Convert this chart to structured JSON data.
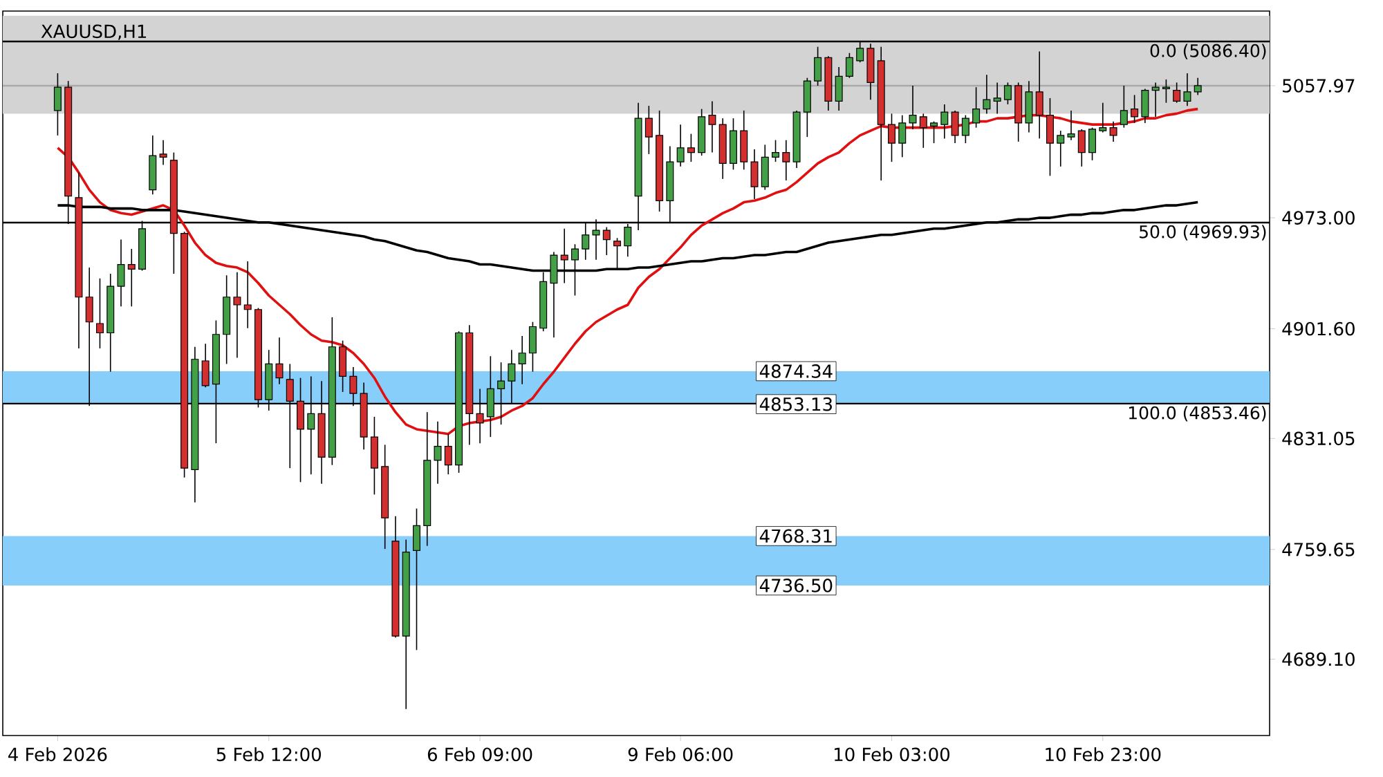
{
  "chart_data": {
    "type": "candlestick",
    "title": "XAUUSD,H1",
    "categories": [
      "4 Feb 2026",
      null,
      null,
      null,
      null,
      null,
      null,
      null,
      null,
      null,
      null,
      null,
      null,
      null,
      null,
      null,
      null,
      null,
      null,
      null,
      "5 Feb 12:00",
      null,
      null,
      null,
      null,
      null,
      null,
      null,
      null,
      null,
      null,
      null,
      null,
      null,
      null,
      null,
      null,
      null,
      null,
      null,
      "6 Feb 09:00",
      null,
      null,
      null,
      null,
      null,
      null,
      null,
      null,
      null,
      null,
      null,
      null,
      null,
      null,
      null,
      null,
      null,
      null,
      "9 Feb 06:00",
      null,
      null,
      null,
      null,
      null,
      null,
      null,
      null,
      null,
      null,
      null,
      null,
      null,
      null,
      null,
      null,
      null,
      null,
      null,
      "10 Feb 03:00",
      null,
      null,
      null,
      null,
      null,
      null,
      null,
      null,
      null,
      null,
      null,
      null,
      null,
      null,
      null,
      null,
      null,
      null,
      null,
      "10 Feb 23:00",
      null,
      null,
      null,
      null,
      null,
      null,
      null,
      null,
      null
    ],
    "ohlc": [
      [
        5042,
        5066,
        5026,
        5057
      ],
      [
        5057,
        5061,
        4969,
        4987
      ],
      [
        4986,
        5002,
        4889,
        4922
      ],
      [
        4922,
        4941,
        4852,
        4906
      ],
      [
        4905,
        4934,
        4889,
        4899
      ],
      [
        4899,
        4937,
        4874,
        4929
      ],
      [
        4929,
        4959,
        4916,
        4943
      ],
      [
        4943,
        4953,
        4916,
        4940
      ],
      [
        4940,
        4971,
        4939,
        4966
      ],
      [
        4991,
        5026,
        4988,
        5013
      ],
      [
        5014,
        5023,
        5007,
        5012
      ],
      [
        5010,
        5015,
        4937,
        4963
      ],
      [
        4963,
        4964,
        4806,
        4812
      ],
      [
        4811,
        4890,
        4790,
        4882
      ],
      [
        4881,
        4892,
        4864,
        4865
      ],
      [
        4866,
        4907,
        4828,
        4898
      ],
      [
        4898,
        4936,
        4879,
        4922
      ],
      [
        4922,
        4938,
        4883,
        4917
      ],
      [
        4917,
        4945,
        4902,
        4914
      ],
      [
        4914,
        4915,
        4851,
        4856
      ],
      [
        4856,
        4888,
        4849,
        4879
      ],
      [
        4879,
        4896,
        4866,
        4870
      ],
      [
        4869,
        4879,
        4812,
        4855
      ],
      [
        4855,
        4870,
        4803,
        4837
      ],
      [
        4837,
        4871,
        4808,
        4847
      ],
      [
        4847,
        4868,
        4802,
        4819
      ],
      [
        4819,
        4909,
        4814,
        4890
      ],
      [
        4890,
        4894,
        4861,
        4871
      ],
      [
        4871,
        4877,
        4852,
        4860
      ],
      [
        4860,
        4867,
        4824,
        4832
      ],
      [
        4832,
        4845,
        4795,
        4812
      ],
      [
        4813,
        4827,
        4760,
        4780
      ],
      [
        4765,
        4781,
        4703,
        4704
      ],
      [
        4704,
        4766,
        4657,
        4758
      ],
      [
        4759,
        4786,
        4695,
        4775
      ],
      [
        4775,
        4848,
        4762,
        4817
      ],
      [
        4817,
        4842,
        4802,
        4826
      ],
      [
        4826,
        4834,
        4808,
        4814
      ],
      [
        4814,
        4900,
        4809,
        4899
      ],
      [
        4899,
        4904,
        4827,
        4847
      ],
      [
        4847,
        4863,
        4828,
        4841
      ],
      [
        4845,
        4884,
        4832,
        4863
      ],
      [
        4863,
        4880,
        4840,
        4868
      ],
      [
        4868,
        4888,
        4853,
        4879
      ],
      [
        4879,
        4897,
        4866,
        4886
      ],
      [
        4886,
        4906,
        4874,
        4903
      ],
      [
        4902,
        4938,
        4900,
        4932
      ],
      [
        4931,
        4951,
        4896,
        4949
      ],
      [
        4949,
        4966,
        4931,
        4946
      ],
      [
        4946,
        4956,
        4923,
        4953
      ],
      [
        4953,
        4970,
        4946,
        4962
      ],
      [
        4962,
        4972,
        4946,
        4965
      ],
      [
        4965,
        4967,
        4949,
        4959
      ],
      [
        4958,
        4960,
        4940,
        4955
      ],
      [
        4955,
        4969,
        4948,
        4967
      ],
      [
        4987,
        5047,
        4965,
        5037
      ],
      [
        5037,
        5045,
        5014,
        5025
      ],
      [
        5026,
        5042,
        4977,
        4984
      ],
      [
        4984,
        5019,
        4970,
        5009
      ],
      [
        5009,
        5033,
        5006,
        5018
      ],
      [
        5018,
        5027,
        5009,
        5015
      ],
      [
        5015,
        5043,
        5013,
        5038
      ],
      [
        5039,
        5048,
        5015,
        5033
      ],
      [
        5033,
        5037,
        4998,
        5008
      ],
      [
        5008,
        5037,
        5004,
        5029
      ],
      [
        5029,
        5042,
        5004,
        5009
      ],
      [
        5009,
        5017,
        4985,
        4993
      ],
      [
        4993,
        5020,
        4991,
        5012
      ],
      [
        5012,
        5023,
        5009,
        5015
      ],
      [
        5015,
        5023,
        4997,
        5009
      ],
      [
        5009,
        5042,
        5005,
        5041
      ],
      [
        5041,
        5063,
        5025,
        5061
      ],
      [
        5061,
        5083,
        5058,
        5076
      ],
      [
        5076,
        5077,
        5042,
        5048
      ],
      [
        5048,
        5070,
        5042,
        5064
      ],
      [
        5064,
        5079,
        5063,
        5076
      ],
      [
        5074,
        5086,
        5073,
        5082
      ],
      [
        5082,
        5085,
        5049,
        5060
      ],
      [
        5074,
        5083,
        4997,
        5033
      ],
      [
        5033,
        5040,
        5009,
        5021
      ],
      [
        5021,
        5039,
        5012,
        5034
      ],
      [
        5034,
        5058,
        5030,
        5039
      ],
      [
        5038,
        5040,
        5018,
        5031
      ],
      [
        5032,
        5035,
        5021,
        5034
      ],
      [
        5033,
        5046,
        5024,
        5041
      ],
      [
        5041,
        5042,
        5021,
        5026
      ],
      [
        5026,
        5039,
        5021,
        5037
      ],
      [
        5034,
        5057,
        5031,
        5043
      ],
      [
        5043,
        5065,
        5040,
        5049
      ],
      [
        5048,
        5060,
        5040,
        5050
      ],
      [
        5049,
        5060,
        5046,
        5058
      ],
      [
        5058,
        5060,
        5022,
        5034
      ],
      [
        5034,
        5061,
        5028,
        5054
      ],
      [
        5054,
        5080,
        5024,
        5039
      ],
      [
        5039,
        5050,
        5000,
        5021
      ],
      [
        5021,
        5029,
        5006,
        5026
      ],
      [
        5025,
        5042,
        5023,
        5027
      ],
      [
        5029,
        5030,
        5006,
        5015
      ],
      [
        5015,
        5031,
        5010,
        5030
      ],
      [
        5029,
        5047,
        5028,
        5031
      ],
      [
        5031,
        5035,
        5022,
        5026
      ],
      [
        5033,
        5058,
        5031,
        5042
      ],
      [
        5043,
        5052,
        5034,
        5038
      ],
      [
        5038,
        5056,
        5034,
        5055
      ],
      [
        5055,
        5060,
        5038,
        5057
      ],
      [
        5056,
        5062,
        5047,
        5057
      ],
      [
        5055,
        5060,
        5047,
        5048
      ],
      [
        5048,
        5066,
        5045,
        5054
      ],
      [
        5054,
        5063,
        5052,
        5058
      ]
    ],
    "colors": [
      "#43a047",
      "#d32f2f",
      "#d32f2f",
      "#d32f2f",
      "#d32f2f",
      "#43a047",
      "#43a047",
      "#d32f2f",
      "#43a047",
      "#43a047",
      "#d32f2f",
      "#d32f2f",
      "#d32f2f",
      "#43a047",
      "#d32f2f",
      "#43a047",
      "#43a047",
      "#d32f2f",
      "#d32f2f",
      "#d32f2f",
      "#43a047",
      "#d32f2f",
      "#d32f2f",
      "#d32f2f",
      "#43a047",
      "#d32f2f",
      "#43a047",
      "#d32f2f",
      "#d32f2f",
      "#d32f2f",
      "#d32f2f",
      "#d32f2f",
      "#d32f2f",
      "#43a047",
      "#43a047",
      "#43a047",
      "#43a047",
      "#d32f2f",
      "#43a047",
      "#d32f2f",
      "#d32f2f",
      "#43a047",
      "#43a047",
      "#43a047",
      "#43a047",
      "#43a047",
      "#43a047",
      "#43a047",
      "#d32f2f",
      "#43a047",
      "#43a047",
      "#43a047",
      "#d32f2f",
      "#d32f2f",
      "#43a047",
      "#43a047",
      "#d32f2f",
      "#d32f2f",
      "#43a047",
      "#43a047",
      "#d32f2f",
      "#43a047",
      "#d32f2f",
      "#d32f2f",
      "#43a047",
      "#d32f2f",
      "#d32f2f",
      "#43a047",
      "#43a047",
      "#d32f2f",
      "#43a047",
      "#43a047",
      "#43a047",
      "#d32f2f",
      "#43a047",
      "#43a047",
      "#43a047",
      "#d32f2f",
      "#d32f2f",
      "#d32f2f",
      "#43a047",
      "#43a047",
      "#d32f2f",
      "#43a047",
      "#43a047",
      "#d32f2f",
      "#43a047",
      "#43a047",
      "#43a047",
      "#43a047",
      "#43a047",
      "#d32f2f",
      "#43a047",
      "#d32f2f",
      "#d32f2f",
      "#43a047",
      "#43a047",
      "#d32f2f",
      "#43a047",
      "#43a047",
      "#d32f2f",
      "#43a047",
      "#d32f2f",
      "#43a047",
      "#43a047",
      "#43a047",
      "#d32f2f",
      "#43a047",
      "#43a047"
    ],
    "series": [
      {
        "type": "line",
        "color": "#e01010",
        "values": [
          5018,
          5012,
          5002,
          4991,
          4983,
          4978,
          4976,
          4975,
          4977,
          4979,
          4981,
          4978,
          4968,
          4957,
          4949,
          4944,
          4942,
          4941,
          4938,
          4931,
          4923,
          4917,
          4911,
          4904,
          4898,
          4894,
          4893,
          4891,
          4886,
          4879,
          4870,
          4858,
          4848,
          4840,
          4837,
          4836,
          4835,
          4834,
          4839,
          4841,
          4842,
          4843,
          4845,
          4849,
          4852,
          4857,
          4866,
          4874,
          4883,
          4892,
          4900,
          4906,
          4910,
          4914,
          4917,
          4928,
          4935,
          4940,
          4947,
          4954,
          4962,
          4968,
          4972,
          4976,
          4979,
          4983,
          4984,
          4986,
          4989,
          4991,
          4996,
          5002,
          5008,
          5012,
          5015,
          5021,
          5026,
          5029,
          5032,
          5031,
          5031,
          5031,
          5031,
          5031,
          5031,
          5032,
          5033,
          5035,
          5035,
          5037,
          5037,
          5038,
          5039,
          5039,
          5038,
          5037,
          5035,
          5034,
          5033,
          5033,
          5033,
          5034,
          5035,
          5037,
          5037,
          5039,
          5040,
          5042,
          5043
        ]
      },
      {
        "type": "line",
        "color": "#000000",
        "values": [
          4981,
          4981,
          4980,
          4980,
          4980,
          4979,
          4979,
          4979,
          4978,
          4978,
          4978,
          4978,
          4977,
          4976,
          4975,
          4974,
          4973,
          4972,
          4971,
          4970,
          4970,
          4969,
          4968,
          4967,
          4966,
          4965,
          4964,
          4963,
          4962,
          4961,
          4959,
          4958,
          4956,
          4954,
          4952,
          4951,
          4949,
          4947,
          4946,
          4945,
          4943,
          4943,
          4942,
          4941,
          4940,
          4939,
          4939,
          4939,
          4939,
          4939,
          4939,
          4939,
          4940,
          4940,
          4940,
          4941,
          4941,
          4942,
          4943,
          4944,
          4945,
          4945,
          4946,
          4947,
          4947,
          4948,
          4949,
          4949,
          4950,
          4951,
          4951,
          4953,
          4955,
          4957,
          4958,
          4959,
          4960,
          4961,
          4962,
          4962,
          4963,
          4964,
          4965,
          4966,
          4966,
          4967,
          4968,
          4969,
          4970,
          4970,
          4971,
          4972,
          4972,
          4973,
          4973,
          4974,
          4975,
          4975,
          4976,
          4976,
          4977,
          4978,
          4978,
          4979,
          4980,
          4981,
          4981,
          4982,
          4983
        ]
      }
    ],
    "ylim": [
      4640,
      5106
    ],
    "yticks": [
      {
        "value": 4689.1,
        "label": "4689.10"
      },
      {
        "value": 4759.65,
        "label": "4759.65"
      },
      {
        "value": 4831.05,
        "label": "4831.05"
      },
      {
        "value": 4901.6,
        "label": "4901.60"
      },
      {
        "value": 4973.0,
        "label": "4973.00"
      },
      {
        "value": 5057.97,
        "label": "5057.97"
      }
    ],
    "bands": [
      {
        "axis": "y",
        "from": 5040,
        "to": 5103,
        "color": "#d3d3d3"
      },
      {
        "axis": "y",
        "from": 4853.13,
        "to": 4874.34,
        "color": "#87cefa"
      },
      {
        "axis": "y",
        "from": 4736.5,
        "to": 4768.31,
        "color": "#87cefa"
      }
    ],
    "ref_lines": [
      {
        "axis": "y",
        "value": 5057.97,
        "color": "#a9a9a9"
      },
      {
        "axis": "y",
        "value": 5086.4,
        "label": "0.0 (5086.40)",
        "color": "#000000"
      },
      {
        "axis": "y",
        "value": 4969.93,
        "label": "50.0 (4969.93)",
        "color": "#000000"
      },
      {
        "axis": "y",
        "value": 4853.46,
        "label": "100.0 (4853.46)",
        "color": "#000000"
      }
    ],
    "annotations": [
      {
        "text": "4874.34",
        "y": 4874.34
      },
      {
        "text": "4853.13",
        "y": 4853.13
      },
      {
        "text": "4768.31",
        "y": 4768.31
      },
      {
        "text": "4736.50",
        "y": 4736.5
      }
    ]
  }
}
